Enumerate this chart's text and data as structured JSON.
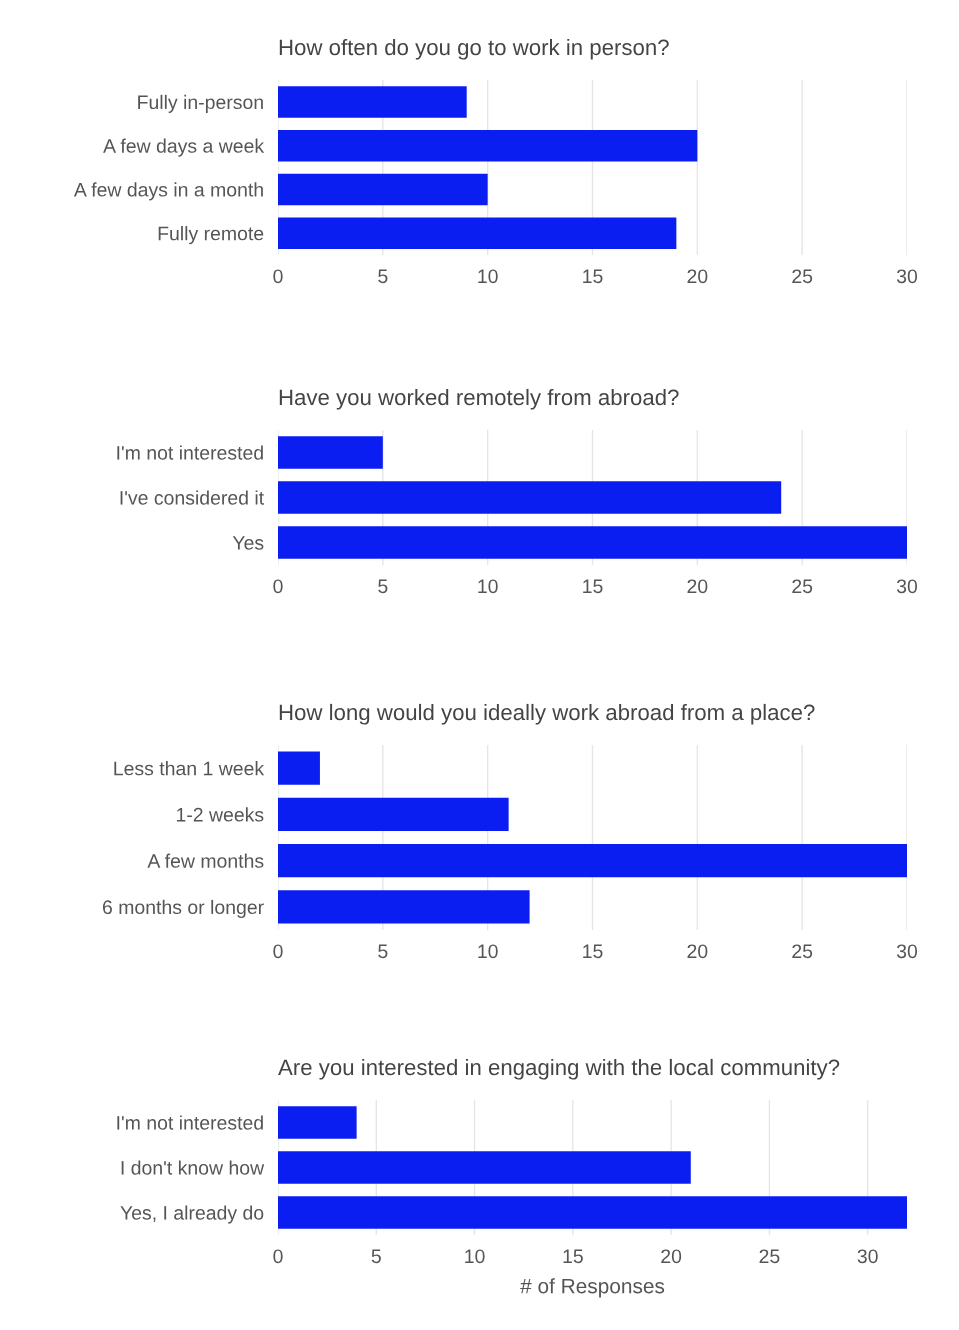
{
  "chart_data": [
    {
      "type": "bar",
      "orientation": "horizontal",
      "title": "How often do you go to work in person?",
      "categories": [
        "Fully in-person",
        "A few days a week",
        "A few days in a month",
        "Fully remote"
      ],
      "values": [
        9,
        20,
        10,
        19
      ],
      "color": "#0a1ef2",
      "xlim": [
        0,
        30
      ],
      "xticks": [
        0,
        5,
        10,
        15,
        20,
        25,
        30
      ],
      "grid": "x"
    },
    {
      "type": "bar",
      "orientation": "horizontal",
      "title": "Have you worked remotely from abroad?",
      "categories": [
        "I'm not interested",
        "I've considered it",
        "Yes"
      ],
      "values": [
        5,
        24,
        30
      ],
      "color": "#0a1ef2",
      "xlim": [
        0,
        30
      ],
      "xticks": [
        0,
        5,
        10,
        15,
        20,
        25,
        30
      ],
      "grid": "x"
    },
    {
      "type": "bar",
      "orientation": "horizontal",
      "title": "How long would you ideally work abroad from a place?",
      "categories": [
        "Less than 1 week",
        "1-2 weeks",
        "A few months",
        "6 months or longer"
      ],
      "values": [
        2,
        11,
        30,
        12
      ],
      "color": "#0a1ef2",
      "xlim": [
        0,
        30
      ],
      "xticks": [
        0,
        5,
        10,
        15,
        20,
        25,
        30
      ],
      "grid": "x"
    },
    {
      "type": "bar",
      "orientation": "horizontal",
      "title": "Are you interested in engaging with the local community?",
      "xlabel": "# of Responses",
      "categories": [
        "I'm not interested",
        "I don't know how",
        "Yes, I already do"
      ],
      "values": [
        4,
        21,
        32
      ],
      "color": "#0a1ef2",
      "xlim": [
        0,
        32
      ],
      "xticks": [
        0,
        5,
        10,
        15,
        20,
        25,
        30
      ],
      "grid": "x"
    }
  ]
}
